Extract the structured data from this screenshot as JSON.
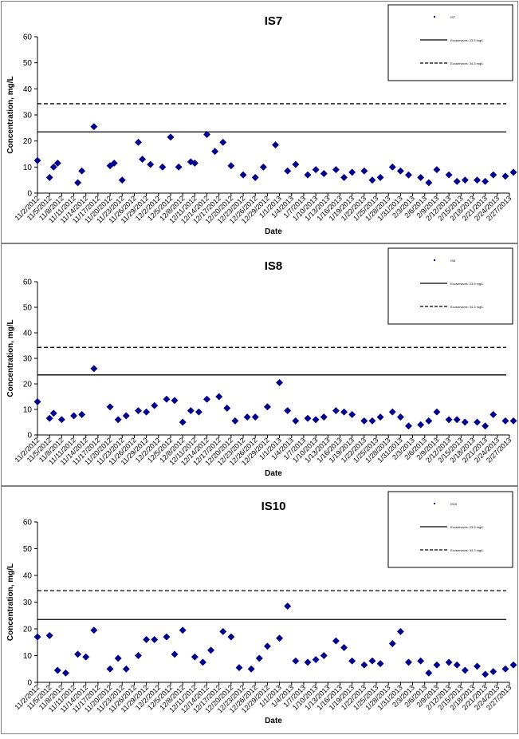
{
  "chart_data": [
    {
      "type": "scatter",
      "title": "IS7",
      "xlabel": "Date",
      "ylabel": "Concentration, mg/L",
      "ylim": [
        0,
        60
      ],
      "yticks": [
        0,
        10,
        20,
        30,
        40,
        50,
        60
      ],
      "grid": false,
      "legend_position": "top-right",
      "legend_entries": [
        "IS7",
        "Ecoservices: 23.5 mg/L",
        "Ecoservices: 34.3 mg/L"
      ],
      "xticks": [
        "11/2/2012",
        "11/5/2012",
        "11/8/2012",
        "11/11/2012",
        "11/14/2012",
        "11/17/2012",
        "11/20/2012",
        "11/23/2012",
        "11/26/2012",
        "11/29/2012",
        "12/2/2012",
        "12/5/2012",
        "12/8/2012",
        "12/11/2012",
        "12/14/2012",
        "12/17/2012",
        "12/20/2012",
        "12/23/2012",
        "12/26/2012",
        "12/29/2012",
        "1/1/2013",
        "1/4/2013",
        "1/7/2013",
        "1/10/2013",
        "1/13/2013",
        "1/16/2013",
        "1/19/2013",
        "1/22/2013",
        "1/25/2013",
        "1/28/2013",
        "1/31/2013",
        "2/3/2013",
        "2/6/2013",
        "2/9/2013",
        "2/12/2013",
        "2/15/2013",
        "2/18/2013",
        "2/21/2013",
        "2/24/2013",
        "2/27/2013"
      ],
      "reference_lines": [
        {
          "name": "Ecoservices: 23.5 mg/L",
          "value": 23.5,
          "style": "solid"
        },
        {
          "name": "Ecoservices: 34.3 mg/L",
          "value": 34.3,
          "style": "dashed"
        }
      ],
      "series": [
        {
          "name": "IS7",
          "color": "#00008b",
          "points": [
            [
              "11/2/2012",
              12.5
            ],
            [
              "11/5/2012",
              6
            ],
            [
              "11/6/2012",
              10
            ],
            [
              "11/7/2012",
              11.5
            ],
            [
              "11/12/2012",
              4
            ],
            [
              "11/13/2012",
              8.5
            ],
            [
              "11/16/2012",
              25.5
            ],
            [
              "11/20/2012",
              10.5
            ],
            [
              "11/21/2012",
              11.5
            ],
            [
              "11/23/2012",
              5
            ],
            [
              "11/27/2012",
              19.5
            ],
            [
              "11/28/2012",
              13
            ],
            [
              "11/30/2012",
              11
            ],
            [
              "12/3/2012",
              10
            ],
            [
              "12/5/2012",
              21.5
            ],
            [
              "12/7/2012",
              10
            ],
            [
              "12/10/2012",
              12
            ],
            [
              "12/11/2012",
              11.5
            ],
            [
              "12/14/2012",
              22.5
            ],
            [
              "12/16/2012",
              16
            ],
            [
              "12/18/2012",
              19.5
            ],
            [
              "12/20/2012",
              10.5
            ],
            [
              "12/23/2012",
              7
            ],
            [
              "12/26/2012",
              6
            ],
            [
              "12/28/2012",
              10
            ],
            [
              "12/31/2012",
              18.5
            ],
            [
              "1/3/2013",
              8.5
            ],
            [
              "1/5/2013",
              11
            ],
            [
              "1/8/2013",
              7
            ],
            [
              "1/10/2013",
              9
            ],
            [
              "1/12/2013",
              7.5
            ],
            [
              "1/15/2013",
              9
            ],
            [
              "1/17/2013",
              6
            ],
            [
              "1/19/2013",
              8
            ],
            [
              "1/22/2013",
              8.5
            ],
            [
              "1/24/2013",
              5
            ],
            [
              "1/26/2013",
              6
            ],
            [
              "1/29/2013",
              10
            ],
            [
              "1/31/2013",
              8.5
            ],
            [
              "2/2/2013",
              7
            ],
            [
              "2/5/2013",
              6
            ],
            [
              "2/7/2013",
              4
            ],
            [
              "2/9/2013",
              9
            ],
            [
              "2/12/2013",
              7
            ],
            [
              "2/14/2013",
              4.5
            ],
            [
              "2/16/2013",
              5
            ],
            [
              "2/19/2013",
              5
            ],
            [
              "2/21/2013",
              4.5
            ],
            [
              "2/23/2013",
              7
            ],
            [
              "2/26/2013",
              6.5
            ],
            [
              "2/28/2013",
              8
            ]
          ]
        }
      ]
    },
    {
      "type": "scatter",
      "title": "IS8",
      "xlabel": "Date",
      "ylabel": "Concentration, mg/L",
      "ylim": [
        0,
        60
      ],
      "yticks": [
        0,
        10,
        20,
        30,
        40,
        50,
        60
      ],
      "grid": false,
      "legend_position": "top-right",
      "legend_entries": [
        "IS8",
        "Ecoservices: 23.5 mg/L",
        "Ecoservices: 34.3 mg/L"
      ],
      "xticks": [
        "11/2/2012",
        "11/5/2012",
        "11/8/2012",
        "11/11/2012",
        "11/14/2012",
        "11/17/2012",
        "11/20/2012",
        "11/23/2012",
        "11/26/2012",
        "11/29/2012",
        "12/2/2012",
        "12/5/2012",
        "12/8/2012",
        "12/11/2012",
        "12/14/2012",
        "12/17/2012",
        "12/20/2012",
        "12/23/2012",
        "12/26/2012",
        "12/29/2012",
        "1/1/2013",
        "1/4/2013",
        "1/7/2013",
        "1/10/2013",
        "1/13/2013",
        "1/16/2013",
        "1/19/2013",
        "1/22/2013",
        "1/25/2013",
        "1/28/2013",
        "1/31/2013",
        "2/3/2013",
        "2/6/2013",
        "2/9/2013",
        "2/12/2013",
        "2/15/2013",
        "2/18/2013",
        "2/21/2013",
        "2/24/2013",
        "2/27/2013"
      ],
      "reference_lines": [
        {
          "name": "Ecoservices: 23.5 mg/L",
          "value": 23.5,
          "style": "solid"
        },
        {
          "name": "Ecoservices: 34.3 mg/L",
          "value": 34.3,
          "style": "dashed"
        }
      ],
      "series": [
        {
          "name": "IS8",
          "color": "#00008b",
          "points": [
            [
              "11/2/2012",
              13
            ],
            [
              "11/5/2012",
              6.5
            ],
            [
              "11/6/2012",
              8.5
            ],
            [
              "11/8/2012",
              6
            ],
            [
              "11/11/2012",
              7.5
            ],
            [
              "11/13/2012",
              8
            ],
            [
              "11/16/2012",
              26
            ],
            [
              "11/20/2012",
              11
            ],
            [
              "11/22/2012",
              6
            ],
            [
              "11/24/2012",
              7.5
            ],
            [
              "11/27/2012",
              9.5
            ],
            [
              "11/29/2012",
              9
            ],
            [
              "12/1/2012",
              11.5
            ],
            [
              "12/4/2012",
              14
            ],
            [
              "12/6/2012",
              13.5
            ],
            [
              "12/8/2012",
              5
            ],
            [
              "12/10/2012",
              9.5
            ],
            [
              "12/12/2012",
              9
            ],
            [
              "12/14/2012",
              14
            ],
            [
              "12/17/2012",
              15
            ],
            [
              "12/19/2012",
              10.5
            ],
            [
              "12/21/2012",
              5.5
            ],
            [
              "12/24/2012",
              7
            ],
            [
              "12/26/2012",
              7
            ],
            [
              "12/29/2012",
              11
            ],
            [
              "1/1/2013",
              20.5
            ],
            [
              "1/3/2013",
              9.5
            ],
            [
              "1/5/2013",
              5.5
            ],
            [
              "1/8/2013",
              6.5
            ],
            [
              "1/10/2013",
              6
            ],
            [
              "1/12/2013",
              7
            ],
            [
              "1/15/2013",
              9.5
            ],
            [
              "1/17/2013",
              9
            ],
            [
              "1/19/2013",
              8
            ],
            [
              "1/22/2013",
              5.5
            ],
            [
              "1/24/2013",
              5.5
            ],
            [
              "1/26/2013",
              7
            ],
            [
              "1/29/2013",
              9
            ],
            [
              "1/31/2013",
              7
            ],
            [
              "2/2/2013",
              3.5
            ],
            [
              "2/5/2013",
              4
            ],
            [
              "2/7/2013",
              5.5
            ],
            [
              "2/9/2013",
              9
            ],
            [
              "2/12/2013",
              6
            ],
            [
              "2/14/2013",
              6
            ],
            [
              "2/16/2013",
              5
            ],
            [
              "2/19/2013",
              5
            ],
            [
              "2/21/2013",
              3.5
            ],
            [
              "2/23/2013",
              8
            ],
            [
              "2/26/2013",
              5.5
            ],
            [
              "2/28/2013",
              5.5
            ]
          ]
        }
      ]
    },
    {
      "type": "scatter",
      "title": "IS10",
      "xlabel": "Date",
      "ylabel": "Concentration, mg/L",
      "ylim": [
        0,
        60
      ],
      "yticks": [
        0,
        10,
        20,
        30,
        40,
        50,
        60
      ],
      "grid": false,
      "legend_position": "top-right",
      "legend_entries": [
        "IS10",
        "Ecoservices: 23.5 mg/L",
        "Ecoservices: 34.3 mg/L"
      ],
      "xticks": [
        "11/2/2012",
        "11/5/2012",
        "11/8/2012",
        "11/11/2012",
        "11/14/2012",
        "11/17/2012",
        "11/20/2012",
        "11/23/2012",
        "11/26/2012",
        "11/29/2012",
        "12/2/2012",
        "12/5/2012",
        "12/8/2012",
        "12/11/2012",
        "12/14/2012",
        "12/17/2012",
        "12/20/2012",
        "12/23/2012",
        "12/26/2012",
        "12/29/2012",
        "1/1/2013",
        "1/4/2013",
        "1/7/2013",
        "1/10/2013",
        "1/13/2013",
        "1/16/2013",
        "1/19/2013",
        "1/22/2013",
        "1/25/2013",
        "1/28/2013",
        "1/31/2013",
        "2/3/2013",
        "2/6/2013",
        "2/9/2013",
        "2/12/2013",
        "2/15/2013",
        "2/18/2013",
        "2/21/2013",
        "2/24/2013",
        "2/27/2013"
      ],
      "reference_lines": [
        {
          "name": "Ecoservices: 23.5 mg/L",
          "value": 23.5,
          "style": "solid"
        },
        {
          "name": "Ecoservices: 34.3 mg/L",
          "value": 34.3,
          "style": "dashed"
        }
      ],
      "series": [
        {
          "name": "IS10",
          "color": "#00008b",
          "points": [
            [
              "11/2/2012",
              17
            ],
            [
              "11/5/2012",
              17.5
            ],
            [
              "11/7/2012",
              4.5
            ],
            [
              "11/9/2012",
              3.5
            ],
            [
              "11/12/2012",
              10.5
            ],
            [
              "11/14/2012",
              9.5
            ],
            [
              "11/16/2012",
              19.5
            ],
            [
              "11/20/2012",
              5
            ],
            [
              "11/22/2012",
              9
            ],
            [
              "11/24/2012",
              5
            ],
            [
              "11/27/2012",
              10
            ],
            [
              "11/29/2012",
              16
            ],
            [
              "12/1/2012",
              16
            ],
            [
              "12/4/2012",
              17
            ],
            [
              "12/6/2012",
              10.5
            ],
            [
              "12/8/2012",
              19.5
            ],
            [
              "12/11/2012",
              9.5
            ],
            [
              "12/13/2012",
              7.5
            ],
            [
              "12/15/2012",
              12
            ],
            [
              "12/18/2012",
              19
            ],
            [
              "12/20/2012",
              17
            ],
            [
              "12/22/2012",
              5.5
            ],
            [
              "12/25/2012",
              5
            ],
            [
              "12/27/2012",
              9
            ],
            [
              "12/29/2012",
              13.5
            ],
            [
              "1/1/2013",
              16.5
            ],
            [
              "1/3/2013",
              28.5
            ],
            [
              "1/5/2013",
              8
            ],
            [
              "1/8/2013",
              7.5
            ],
            [
              "1/10/2013",
              8.5
            ],
            [
              "1/12/2013",
              10
            ],
            [
              "1/15/2013",
              15.5
            ],
            [
              "1/17/2013",
              13
            ],
            [
              "1/19/2013",
              8
            ],
            [
              "1/22/2013",
              6.5
            ],
            [
              "1/24/2013",
              8
            ],
            [
              "1/26/2013",
              7
            ],
            [
              "1/29/2013",
              14.5
            ],
            [
              "1/31/2013",
              19
            ],
            [
              "2/2/2013",
              7.5
            ],
            [
              "2/5/2013",
              8
            ],
            [
              "2/7/2013",
              3.5
            ],
            [
              "2/9/2013",
              6.5
            ],
            [
              "2/12/2013",
              7.5
            ],
            [
              "2/14/2013",
              6.5
            ],
            [
              "2/16/2013",
              4.5
            ],
            [
              "2/19/2013",
              6
            ],
            [
              "2/21/2013",
              3
            ],
            [
              "2/23/2013",
              4
            ],
            [
              "2/26/2013",
              5
            ],
            [
              "2/28/2013",
              6.5
            ]
          ]
        }
      ]
    }
  ]
}
